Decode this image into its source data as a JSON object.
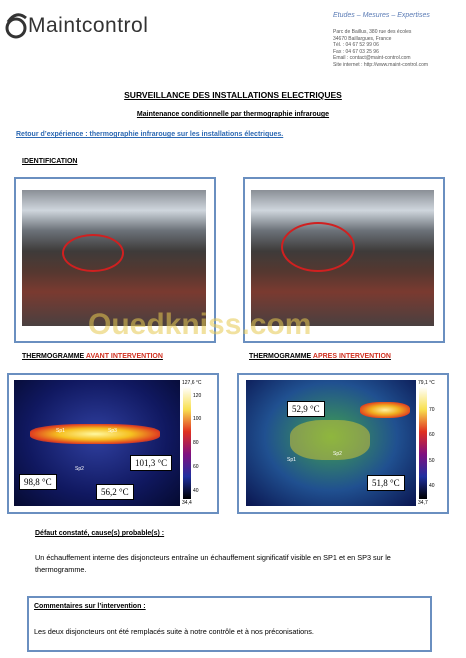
{
  "header": {
    "logo": "Maintcontrol",
    "tagline": "Etudes – Mesures – Expertises",
    "contact": [
      "Parc de Baillus, 380 rue des écoles",
      "34670 Baillargues, France",
      "Tél. : 04 67 52 99 06",
      "Fax : 04 67 03 25 96",
      "Email : contact@maint-control.com",
      "Site internet : http://www.maint-control.com"
    ]
  },
  "title": "SURVEILLANCE DES INSTALLATIONS ELECTRIQUES",
  "subtitle": "Maintenance conditionnelle par thermographie infrarouge",
  "intro": "Retour d’expérience : thermographie infrarouge sur les installations électriques.",
  "identification": "IDENTIFICATION",
  "thermograms": [
    {
      "label": "THERMOGRAMME ",
      "label_highlight": "AVANT INTERVENTION",
      "scale_max": "127,6 °C",
      "scale_min": "34,4",
      "scale_ticks": [
        "120",
        "100",
        "80",
        "60",
        "40"
      ],
      "spots": [
        "Sp1",
        "Sp3",
        "Sp2"
      ],
      "readings": [
        "98,8 °C",
        "101,3 °C",
        "56,2 °C"
      ]
    },
    {
      "label": "THERMOGRAMME ",
      "label_highlight": "APRES INTERVENTION",
      "scale_max": "79,1 °C",
      "scale_min": "34,7",
      "scale_ticks": [
        "70",
        "60",
        "50",
        "40"
      ],
      "spots": [
        "Sp1",
        "Sp2"
      ],
      "readings": [
        "52,9 °C",
        "51,8 °C"
      ]
    }
  ],
  "defect": {
    "title": "Défaut constaté, cause(s) probable(s) :",
    "text": "Un échauffement interne des disjoncteurs entraîne un échauffement significatif visible en SP1 et en SP3 sur le thermogramme."
  },
  "comments": {
    "title": "Commentaires sur l’intervention :",
    "text": "Les deux disjoncteurs ont été remplacés suite à notre contrôle et à nos préconisations."
  },
  "watermark": "Ouedkniss.com"
}
